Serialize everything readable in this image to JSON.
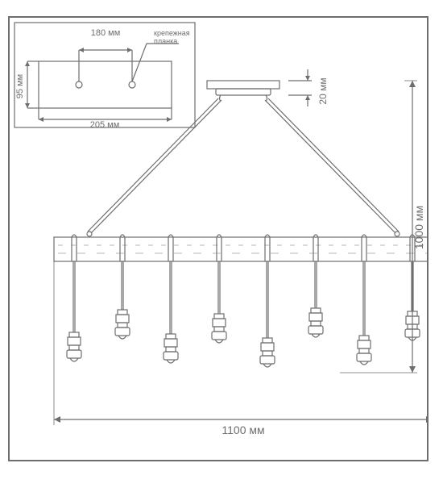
{
  "dimensions": {
    "width_label": "1100 мм",
    "total_height_label": "1000 мм",
    "canopy_height_label": "20 мм",
    "inset_plate_width_label": "205 мм",
    "inset_plate_height_label": "95 мм",
    "inset_inner_width_label": "180 мм",
    "inset_note": "крепежная\nпланка"
  },
  "styling": {
    "stroke_color": "#6e6e6e",
    "stroke_width": 1.2,
    "background": "#ffffff",
    "font_size_dim": 13,
    "font_size_small": 10,
    "bulb_count": 8
  }
}
